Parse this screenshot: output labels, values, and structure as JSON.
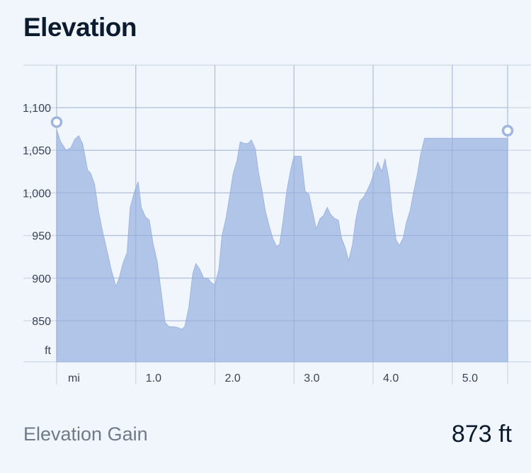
{
  "header": {
    "title": "Elevation"
  },
  "footer": {
    "gain_label": "Elevation Gain",
    "gain_value": "873 ft"
  },
  "colors": {
    "fill": "#aac0e6",
    "line": "#9fb6e0",
    "grid_major": "#d3dbe7",
    "grid_minor": "#e3e8f1",
    "axis_text": "#3a4452",
    "marker": "#9fb6e0"
  },
  "chart_data": {
    "type": "area",
    "xlabel": "mi",
    "ylabel": "ft",
    "xlim": [
      0,
      5.7
    ],
    "ylim": [
      800,
      1150
    ],
    "y_ticks": [
      {
        "value": 1100,
        "label": "1,100"
      },
      {
        "value": 1050,
        "label": "1,050"
      },
      {
        "value": 1000,
        "label": "1,000"
      },
      {
        "value": 950,
        "label": "950"
      },
      {
        "value": 900,
        "label": "900"
      },
      {
        "value": 850,
        "label": "850"
      }
    ],
    "x_ticks": [
      {
        "value": 1.0,
        "label": "1.0"
      },
      {
        "value": 2.0,
        "label": "2.0"
      },
      {
        "value": 3.0,
        "label": "3.0"
      },
      {
        "value": 4.0,
        "label": "4.0"
      },
      {
        "value": 5.0,
        "label": "5.0"
      }
    ],
    "grid": true,
    "x": [
      0,
      0.05,
      0.12,
      0.18,
      0.23,
      0.28,
      0.33,
      0.39,
      0.43,
      0.48,
      0.53,
      0.58,
      0.63,
      0.69,
      0.75,
      0.79,
      0.84,
      0.89,
      0.93,
      0.98,
      1.03,
      1.07,
      1.12,
      1.17,
      1.22,
      1.27,
      1.32,
      1.37,
      1.42,
      1.48,
      1.53,
      1.58,
      1.62,
      1.67,
      1.72,
      1.76,
      1.81,
      1.86,
      1.91,
      1.95,
      2.0,
      2.05,
      2.09,
      2.14,
      2.19,
      2.23,
      2.28,
      2.32,
      2.37,
      2.42,
      2.46,
      2.51,
      2.55,
      2.6,
      2.64,
      2.69,
      2.73,
      2.78,
      2.82,
      2.87,
      2.91,
      2.96,
      3.0,
      3.05,
      3.09,
      3.14,
      3.19,
      3.23,
      3.28,
      3.33,
      3.37,
      3.42,
      3.46,
      3.51,
      3.56,
      3.6,
      3.65,
      3.69,
      3.74,
      3.78,
      3.83,
      3.88,
      3.92,
      3.97,
      4.01,
      4.06,
      4.11,
      4.15,
      4.2,
      4.24,
      4.29,
      4.33,
      4.38,
      4.42,
      4.47,
      4.51,
      4.56,
      4.6,
      4.65,
      4.69,
      4.74,
      4.78,
      4.83,
      4.87,
      4.92,
      4.96,
      5.01,
      5.06,
      5.1,
      5.15,
      5.19,
      5.24,
      5.29,
      5.33,
      5.38,
      5.43,
      5.47,
      5.52,
      5.57,
      5.62,
      5.67,
      5.7
    ],
    "y": [
      1074,
      1060,
      1050,
      1053,
      1063,
      1067,
      1057,
      1027,
      1023,
      1010,
      978,
      955,
      935,
      910,
      890,
      900,
      918,
      930,
      983,
      1000,
      1013,
      983,
      972,
      968,
      940,
      920,
      885,
      848,
      843,
      843,
      842,
      840,
      843,
      865,
      905,
      917,
      910,
      900,
      900,
      895,
      892,
      910,
      950,
      970,
      998,
      1022,
      1038,
      1060,
      1058,
      1058,
      1062,
      1052,
      1025,
      1000,
      978,
      960,
      947,
      937,
      940,
      973,
      1003,
      1028,
      1043,
      1043,
      1043,
      1002,
      998,
      980,
      958,
      970,
      973,
      983,
      975,
      970,
      968,
      947,
      935,
      920,
      940,
      968,
      990,
      995,
      1002,
      1012,
      1023,
      1036,
      1025,
      1040,
      1015,
      978,
      945,
      938,
      947,
      965,
      980,
      1000,
      1022,
      1045,
      1064,
      1064,
      1064,
      1064,
      1064,
      1064,
      1064,
      1064,
      1064,
      1064,
      1064,
      1064,
      1064,
      1064,
      1064,
      1064,
      1064,
      1064,
      1064,
      1064,
      1064,
      1064,
      1064,
      1064
    ],
    "markers": [
      {
        "x": 0,
        "y": 1083
      },
      {
        "x": 5.7,
        "y": 1073
      }
    ]
  }
}
